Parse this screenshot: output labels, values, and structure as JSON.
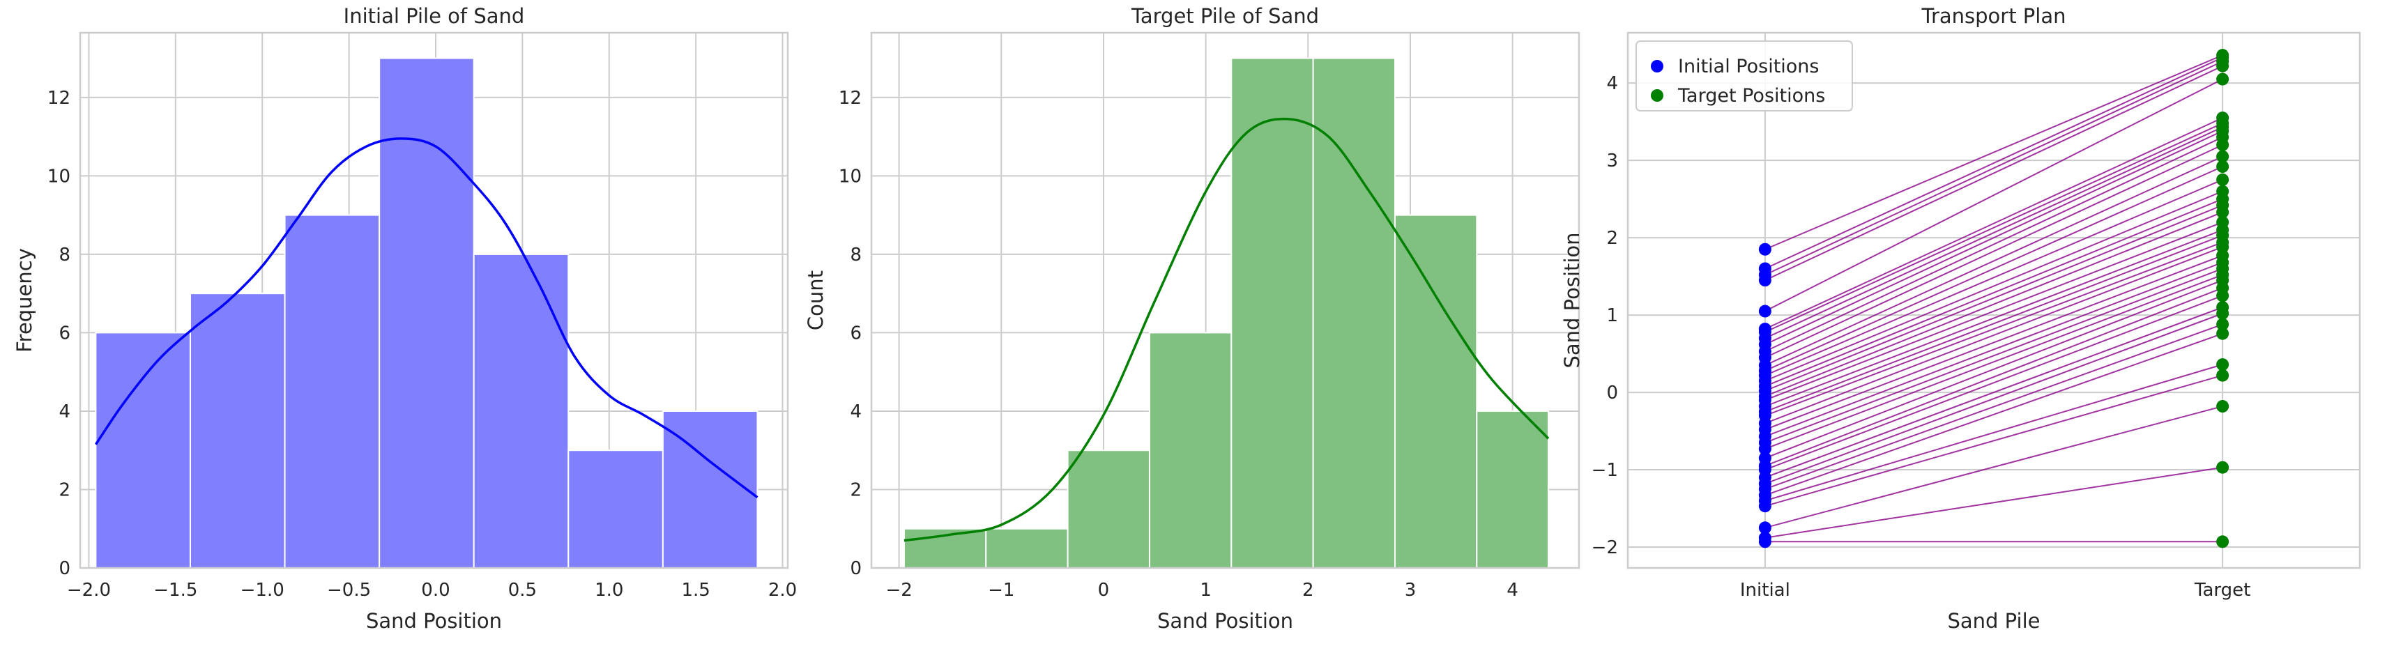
{
  "chart_data": [
    {
      "type": "bar",
      "title": "Initial Pile of Sand",
      "xlabel": "Sand Position",
      "ylabel": "Frequency",
      "xlim": [
        -2.05,
        2.03
      ],
      "ylim": [
        0,
        13.65
      ],
      "xticks": [
        -2.0,
        -1.5,
        -1.0,
        -0.5,
        0.0,
        0.5,
        1.0,
        1.5,
        2.0
      ],
      "xtick_labels": [
        "−2.0",
        "−1.5",
        "−1.0",
        "−0.5",
        "0.0",
        "0.5",
        "1.0",
        "1.5",
        "2.0"
      ],
      "yticks": [
        0,
        2,
        4,
        6,
        8,
        10,
        12
      ],
      "ytick_labels": [
        "0",
        "2",
        "4",
        "6",
        "8",
        "10",
        "12"
      ],
      "bin_edges": [
        -1.96,
        -1.415,
        -0.87,
        -0.325,
        0.22,
        0.765,
        1.31,
        1.855
      ],
      "values": [
        6,
        7,
        9,
        13,
        8,
        3,
        4
      ],
      "bar_color": "#8080ff",
      "kde_color": "#0000ff",
      "kde": {
        "x": [
          -1.96,
          -1.8,
          -1.6,
          -1.4,
          -1.2,
          -1.0,
          -0.8,
          -0.6,
          -0.4,
          -0.2,
          0.0,
          0.2,
          0.4,
          0.6,
          0.8,
          1.0,
          1.2,
          1.4,
          1.6,
          1.855
        ],
        "y": [
          3.15,
          4.2,
          5.3,
          6.1,
          6.8,
          7.7,
          8.9,
          10.1,
          10.75,
          10.95,
          10.75,
          9.9,
          8.8,
          7.2,
          5.4,
          4.4,
          3.9,
          3.35,
          2.65,
          1.8
        ]
      },
      "grid": true
    },
    {
      "type": "bar",
      "title": "Target Pile of Sand",
      "xlabel": "Sand Position",
      "ylabel": "Count",
      "xlim": [
        -2.27,
        4.65
      ],
      "ylim": [
        0,
        13.65
      ],
      "xticks": [
        -2,
        -1,
        0,
        1,
        2,
        3,
        4
      ],
      "xtick_labels": [
        "−2",
        "−1",
        "0",
        "1",
        "2",
        "3",
        "4"
      ],
      "yticks": [
        0,
        2,
        4,
        6,
        8,
        10,
        12
      ],
      "ytick_labels": [
        "0",
        "2",
        "4",
        "6",
        "8",
        "10",
        "12"
      ],
      "bin_edges": [
        -1.95,
        -1.15,
        -0.35,
        0.45,
        1.25,
        2.05,
        2.85,
        3.65,
        4.35
      ],
      "values": [
        1,
        1,
        3,
        6,
        13,
        13,
        9,
        4
      ],
      "bar_color": "#80c080",
      "kde_color": "#008000",
      "kde": {
        "x": [
          -1.95,
          -1.5,
          -1.0,
          -0.5,
          0.0,
          0.5,
          1.0,
          1.4,
          1.8,
          2.2,
          2.6,
          3.0,
          3.4,
          3.8,
          4.35
        ],
        "y": [
          0.7,
          0.85,
          1.1,
          2.0,
          3.9,
          6.8,
          9.6,
          11.1,
          11.45,
          11.0,
          9.6,
          8.0,
          6.3,
          4.8,
          3.3
        ]
      },
      "grid": true
    },
    {
      "type": "scatter",
      "title": "Transport Plan",
      "xlabel": "Sand Pile",
      "ylabel": "Sand Position",
      "xlim": [
        -0.3,
        1.3
      ],
      "ylim": [
        -2.27,
        4.65
      ],
      "categories": [
        "Initial",
        "Target"
      ],
      "yticks": [
        -2,
        -1,
        0,
        1,
        2,
        3,
        4
      ],
      "ytick_labels": [
        "−2",
        "−1",
        "0",
        "1",
        "2",
        "3",
        "4"
      ],
      "series": [
        {
          "name": "Initial Positions",
          "color": "#0000ff"
        },
        {
          "name": "Target Positions",
          "color": "#008000"
        }
      ],
      "line_color": "#8b008b",
      "legend": "top-left",
      "pairs": [
        [
          -1.93,
          -1.93
        ],
        [
          -1.88,
          -0.97
        ],
        [
          -1.75,
          -0.18
        ],
        [
          -1.47,
          0.22
        ],
        [
          -1.4,
          0.36
        ],
        [
          -1.33,
          0.76
        ],
        [
          -1.25,
          0.88
        ],
        [
          -1.18,
          1.02
        ],
        [
          -1.1,
          1.1
        ],
        [
          -1.0,
          1.25
        ],
        [
          -0.95,
          1.35
        ],
        [
          -0.85,
          1.45
        ],
        [
          -0.73,
          1.52
        ],
        [
          -0.65,
          1.6
        ],
        [
          -0.57,
          1.68
        ],
        [
          -0.48,
          1.77
        ],
        [
          -0.4,
          1.88
        ],
        [
          -0.3,
          1.94
        ],
        [
          -0.25,
          2.03
        ],
        [
          -0.18,
          2.1
        ],
        [
          -0.1,
          2.2
        ],
        [
          -0.05,
          2.33
        ],
        [
          0.02,
          2.42
        ],
        [
          0.08,
          2.5
        ],
        [
          0.15,
          2.6
        ],
        [
          0.22,
          2.75
        ],
        [
          0.28,
          2.92
        ],
        [
          0.35,
          3.05
        ],
        [
          0.45,
          3.2
        ],
        [
          0.53,
          3.3
        ],
        [
          0.62,
          3.38
        ],
        [
          0.7,
          3.43
        ],
        [
          0.78,
          3.48
        ],
        [
          0.82,
          3.55
        ],
        [
          1.05,
          4.05
        ],
        [
          1.45,
          4.22
        ],
        [
          1.52,
          4.28
        ],
        [
          1.6,
          4.33
        ],
        [
          1.85,
          4.36
        ]
      ],
      "grid": true
    }
  ]
}
